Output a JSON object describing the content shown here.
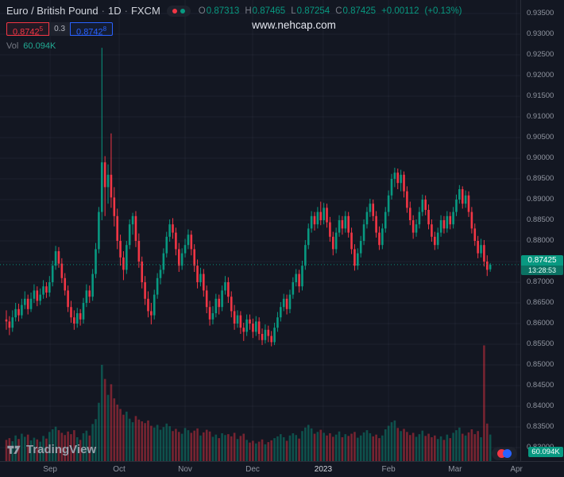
{
  "header": {
    "symbol": "Euro / British Pound",
    "separator": "·",
    "interval": "1D",
    "exchange": "FXCM",
    "ohlc": {
      "o_label": "O",
      "o_value": "0.87313",
      "h_label": "H",
      "h_value": "0.87465",
      "l_label": "L",
      "l_value": "0.87254",
      "c_label": "C",
      "c_value": "0.87425",
      "change": "+0.00112",
      "change_pct": "(+0.13%)"
    },
    "sell": {
      "main": "0.8742",
      "sup": "5"
    },
    "spread": "0.3",
    "buy": {
      "main": "0.8742",
      "sup": "8"
    },
    "vol_label": "Vol",
    "vol_value": "60.094K"
  },
  "watermark": "www.nehcap.com",
  "price_badge": {
    "price": "0.87425",
    "countdown": "13:28:53"
  },
  "volume_badge": "60.094K",
  "logo": {
    "text": "TradingView"
  },
  "price_scale": {
    "ticks": [
      "0.93500",
      "0.93000",
      "0.92500",
      "0.92000",
      "0.91500",
      "0.91000",
      "0.90500",
      "0.90000",
      "0.89500",
      "0.89000",
      "0.88500",
      "0.88000",
      "0.87500",
      "0.87000",
      "0.86500",
      "0.86000",
      "0.85500",
      "0.85000",
      "0.84500",
      "0.84000",
      "0.83500",
      "0.83000"
    ]
  },
  "time_axis": {
    "labels": [
      {
        "text": "Sep",
        "index": 14.2,
        "highlight": false
      },
      {
        "text": "Oct",
        "index": 36.6,
        "highlight": false
      },
      {
        "text": "Nov",
        "index": 58.0,
        "highlight": false
      },
      {
        "text": "Dec",
        "index": 79.9,
        "highlight": false
      },
      {
        "text": "2023",
        "index": 102.8,
        "highlight": true
      },
      {
        "text": "Feb",
        "index": 124.0,
        "highlight": false
      },
      {
        "text": "Mar",
        "index": 145.6,
        "highlight": false
      },
      {
        "text": "Apr",
        "index": 165.5,
        "highlight": false
      }
    ]
  },
  "colors": {
    "background": "#131722",
    "up": "#089981",
    "down": "#f23645",
    "vol_up": "rgba(8,153,129,0.45)",
    "vol_down": "rgba(242,54,69,0.45)",
    "grid": "rgba(149,158,178,0.08)",
    "buy_blue": "#2962ff",
    "sell_red": "#f23645",
    "badge_green": "#089981"
  },
  "chart_data": {
    "type": "candlestick",
    "title": "Euro / British Pound · 1D · FXCM",
    "symbol": "EUR/GBP",
    "interval": "1D",
    "exchange": "FXCM",
    "legend": [
      "price candles",
      "volume"
    ],
    "y_range": [
      0.83,
      0.935
    ],
    "y_tick_step": 0.005,
    "grid": true,
    "current_bar": {
      "open": 0.87313,
      "high": 0.87465,
      "low": 0.87254,
      "close": 0.87425,
      "change": 0.00112,
      "change_pct": 0.13,
      "volume": "60.094K",
      "countdown": "13:28:53"
    },
    "volume_scale_max_k": 270,
    "candle_fields": [
      "open",
      "high",
      "low",
      "close",
      "volume_k"
    ],
    "candles": [
      [
        0.861,
        0.8632,
        0.8585,
        0.8605,
        48
      ],
      [
        0.8605,
        0.8618,
        0.8572,
        0.859,
        52
      ],
      [
        0.859,
        0.8632,
        0.858,
        0.8615,
        45
      ],
      [
        0.8615,
        0.865,
        0.8605,
        0.8635,
        58
      ],
      [
        0.8635,
        0.8648,
        0.8605,
        0.862,
        50
      ],
      [
        0.862,
        0.866,
        0.8612,
        0.8645,
        62
      ],
      [
        0.8645,
        0.8678,
        0.8635,
        0.866,
        55
      ],
      [
        0.866,
        0.867,
        0.8622,
        0.8635,
        60
      ],
      [
        0.8635,
        0.8675,
        0.8628,
        0.866,
        47
      ],
      [
        0.866,
        0.8695,
        0.865,
        0.868,
        53
      ],
      [
        0.868,
        0.869,
        0.8642,
        0.8655,
        49
      ],
      [
        0.8655,
        0.8685,
        0.8645,
        0.867,
        44
      ],
      [
        0.867,
        0.8705,
        0.866,
        0.869,
        57
      ],
      [
        0.869,
        0.87,
        0.8662,
        0.8675,
        51
      ],
      [
        0.8675,
        0.8715,
        0.8665,
        0.87,
        66
      ],
      [
        0.87,
        0.8752,
        0.869,
        0.874,
        72
      ],
      [
        0.874,
        0.8788,
        0.873,
        0.8775,
        78
      ],
      [
        0.8775,
        0.8785,
        0.8735,
        0.8745,
        70
      ],
      [
        0.8745,
        0.8758,
        0.8698,
        0.871,
        64
      ],
      [
        0.871,
        0.8722,
        0.8668,
        0.868,
        59
      ],
      [
        0.868,
        0.8692,
        0.8628,
        0.864,
        67
      ],
      [
        0.864,
        0.8655,
        0.8602,
        0.8615,
        61
      ],
      [
        0.8615,
        0.8632,
        0.8585,
        0.86,
        70
      ],
      [
        0.86,
        0.8638,
        0.859,
        0.8625,
        54
      ],
      [
        0.8625,
        0.8635,
        0.8595,
        0.861,
        48
      ],
      [
        0.861,
        0.8662,
        0.86,
        0.865,
        63
      ],
      [
        0.865,
        0.8695,
        0.864,
        0.868,
        69
      ],
      [
        0.868,
        0.8692,
        0.865,
        0.8665,
        58
      ],
      [
        0.8665,
        0.8732,
        0.8655,
        0.872,
        84
      ],
      [
        0.872,
        0.8795,
        0.871,
        0.878,
        95
      ],
      [
        0.878,
        0.8882,
        0.877,
        0.887,
        132
      ],
      [
        0.887,
        0.9267,
        0.885,
        0.899,
        218
      ],
      [
        0.899,
        0.9005,
        0.886,
        0.893,
        186
      ],
      [
        0.893,
        0.8985,
        0.889,
        0.896,
        150
      ],
      [
        0.896,
        0.906,
        0.888,
        0.8905,
        174
      ],
      [
        0.8905,
        0.893,
        0.8835,
        0.886,
        142
      ],
      [
        0.886,
        0.8878,
        0.878,
        0.88,
        128
      ],
      [
        0.88,
        0.8815,
        0.874,
        0.876,
        118
      ],
      [
        0.876,
        0.8775,
        0.8705,
        0.873,
        105
      ],
      [
        0.873,
        0.88,
        0.872,
        0.879,
        112
      ],
      [
        0.879,
        0.8852,
        0.878,
        0.884,
        96
      ],
      [
        0.884,
        0.8868,
        0.8815,
        0.886,
        88
      ],
      [
        0.886,
        0.8872,
        0.8785,
        0.88,
        102
      ],
      [
        0.88,
        0.8818,
        0.8735,
        0.875,
        94
      ],
      [
        0.875,
        0.8762,
        0.8685,
        0.87,
        90
      ],
      [
        0.87,
        0.8715,
        0.8645,
        0.866,
        86
      ],
      [
        0.866,
        0.8678,
        0.8615,
        0.863,
        92
      ],
      [
        0.863,
        0.865,
        0.8598,
        0.862,
        80
      ],
      [
        0.862,
        0.8682,
        0.861,
        0.867,
        76
      ],
      [
        0.867,
        0.8722,
        0.866,
        0.871,
        82
      ],
      [
        0.871,
        0.8742,
        0.8695,
        0.873,
        71
      ],
      [
        0.873,
        0.8782,
        0.872,
        0.877,
        77
      ],
      [
        0.877,
        0.8822,
        0.876,
        0.881,
        85
      ],
      [
        0.881,
        0.8852,
        0.8798,
        0.884,
        79
      ],
      [
        0.884,
        0.8855,
        0.8805,
        0.882,
        68
      ],
      [
        0.882,
        0.8832,
        0.8765,
        0.878,
        73
      ],
      [
        0.878,
        0.8795,
        0.8725,
        0.874,
        66
      ],
      [
        0.874,
        0.8782,
        0.873,
        0.877,
        62
      ],
      [
        0.877,
        0.8805,
        0.876,
        0.879,
        75
      ],
      [
        0.879,
        0.8828,
        0.878,
        0.8815,
        70
      ],
      [
        0.8815,
        0.8825,
        0.8765,
        0.878,
        64
      ],
      [
        0.878,
        0.8792,
        0.8725,
        0.874,
        69
      ],
      [
        0.874,
        0.8755,
        0.8685,
        0.87,
        74
      ],
      [
        0.87,
        0.8735,
        0.869,
        0.872,
        58
      ],
      [
        0.872,
        0.8732,
        0.8665,
        0.868,
        65
      ],
      [
        0.868,
        0.8692,
        0.8625,
        0.864,
        71
      ],
      [
        0.864,
        0.8655,
        0.8595,
        0.861,
        67
      ],
      [
        0.861,
        0.8642,
        0.8598,
        0.8625,
        55
      ],
      [
        0.8625,
        0.8672,
        0.8615,
        0.866,
        60
      ],
      [
        0.866,
        0.867,
        0.8622,
        0.864,
        52
      ],
      [
        0.864,
        0.8692,
        0.863,
        0.868,
        63
      ],
      [
        0.868,
        0.8715,
        0.867,
        0.87,
        59
      ],
      [
        0.87,
        0.8712,
        0.865,
        0.8665,
        61
      ],
      [
        0.8665,
        0.8678,
        0.8615,
        0.863,
        56
      ],
      [
        0.863,
        0.8645,
        0.8585,
        0.86,
        64
      ],
      [
        0.86,
        0.8632,
        0.859,
        0.862,
        50
      ],
      [
        0.862,
        0.863,
        0.8575,
        0.859,
        57
      ],
      [
        0.859,
        0.8602,
        0.8558,
        0.858,
        62
      ],
      [
        0.858,
        0.8622,
        0.857,
        0.861,
        48
      ],
      [
        0.861,
        0.8622,
        0.8585,
        0.86,
        42
      ],
      [
        0.86,
        0.8612,
        0.8565,
        0.858,
        46
      ],
      [
        0.858,
        0.8618,
        0.857,
        0.8605,
        40
      ],
      [
        0.8605,
        0.8615,
        0.856,
        0.8575,
        44
      ],
      [
        0.8575,
        0.8588,
        0.8548,
        0.856,
        49
      ],
      [
        0.856,
        0.8598,
        0.8552,
        0.8585,
        38
      ],
      [
        0.8585,
        0.8595,
        0.8555,
        0.857,
        43
      ],
      [
        0.857,
        0.8582,
        0.8545,
        0.8555,
        47
      ],
      [
        0.8555,
        0.8602,
        0.8548,
        0.859,
        52
      ],
      [
        0.859,
        0.8628,
        0.858,
        0.8615,
        56
      ],
      [
        0.8615,
        0.8652,
        0.8605,
        0.864,
        61
      ],
      [
        0.864,
        0.8672,
        0.863,
        0.866,
        54
      ],
      [
        0.866,
        0.867,
        0.8622,
        0.8635,
        46
      ],
      [
        0.8635,
        0.8682,
        0.8625,
        0.867,
        58
      ],
      [
        0.867,
        0.8712,
        0.866,
        0.87,
        63
      ],
      [
        0.87,
        0.8732,
        0.869,
        0.872,
        59
      ],
      [
        0.872,
        0.873,
        0.8675,
        0.869,
        51
      ],
      [
        0.869,
        0.8752,
        0.868,
        0.874,
        68
      ],
      [
        0.874,
        0.8802,
        0.873,
        0.879,
        76
      ],
      [
        0.879,
        0.8842,
        0.878,
        0.883,
        82
      ],
      [
        0.883,
        0.8872,
        0.882,
        0.886,
        74
      ],
      [
        0.886,
        0.887,
        0.8825,
        0.884,
        62
      ],
      [
        0.884,
        0.8882,
        0.883,
        0.887,
        66
      ],
      [
        0.887,
        0.8895,
        0.8838,
        0.885,
        71
      ],
      [
        0.885,
        0.8892,
        0.884,
        0.888,
        64
      ],
      [
        0.888,
        0.889,
        0.8832,
        0.8845,
        58
      ],
      [
        0.8845,
        0.8858,
        0.8798,
        0.881,
        63
      ],
      [
        0.881,
        0.8822,
        0.8765,
        0.878,
        55
      ],
      [
        0.878,
        0.8832,
        0.877,
        0.882,
        60
      ],
      [
        0.882,
        0.8862,
        0.881,
        0.885,
        67
      ],
      [
        0.885,
        0.886,
        0.8815,
        0.883,
        54
      ],
      [
        0.883,
        0.8872,
        0.882,
        0.886,
        61
      ],
      [
        0.886,
        0.887,
        0.8808,
        0.882,
        57
      ],
      [
        0.882,
        0.8832,
        0.8768,
        0.878,
        62
      ],
      [
        0.878,
        0.8792,
        0.8728,
        0.874,
        66
      ],
      [
        0.874,
        0.8782,
        0.873,
        0.877,
        53
      ],
      [
        0.877,
        0.8812,
        0.876,
        0.88,
        58
      ],
      [
        0.88,
        0.8852,
        0.879,
        0.884,
        65
      ],
      [
        0.884,
        0.8882,
        0.883,
        0.887,
        70
      ],
      [
        0.887,
        0.8902,
        0.8858,
        0.889,
        63
      ],
      [
        0.889,
        0.89,
        0.8848,
        0.886,
        56
      ],
      [
        0.886,
        0.8872,
        0.8808,
        0.882,
        60
      ],
      [
        0.882,
        0.8835,
        0.8778,
        0.879,
        52
      ],
      [
        0.879,
        0.8842,
        0.878,
        0.883,
        58
      ],
      [
        0.883,
        0.8882,
        0.882,
        0.887,
        72
      ],
      [
        0.887,
        0.8922,
        0.886,
        0.891,
        80
      ],
      [
        0.891,
        0.8962,
        0.89,
        0.895,
        88
      ],
      [
        0.895,
        0.8977,
        0.893,
        0.8965,
        92
      ],
      [
        0.8965,
        0.8975,
        0.8925,
        0.894,
        75
      ],
      [
        0.894,
        0.8972,
        0.892,
        0.896,
        68
      ],
      [
        0.896,
        0.8968,
        0.8905,
        0.892,
        73
      ],
      [
        0.892,
        0.8932,
        0.8868,
        0.888,
        66
      ],
      [
        0.888,
        0.8895,
        0.8838,
        0.885,
        59
      ],
      [
        0.885,
        0.8862,
        0.8805,
        0.882,
        64
      ],
      [
        0.882,
        0.8852,
        0.881,
        0.884,
        55
      ],
      [
        0.884,
        0.8882,
        0.883,
        0.887,
        61
      ],
      [
        0.887,
        0.8912,
        0.886,
        0.89,
        69
      ],
      [
        0.89,
        0.891,
        0.8862,
        0.8875,
        57
      ],
      [
        0.8875,
        0.8888,
        0.8828,
        0.884,
        62
      ],
      [
        0.884,
        0.8852,
        0.8798,
        0.881,
        54
      ],
      [
        0.881,
        0.8822,
        0.8778,
        0.879,
        58
      ],
      [
        0.879,
        0.8832,
        0.878,
        0.882,
        50
      ],
      [
        0.882,
        0.8862,
        0.881,
        0.885,
        56
      ],
      [
        0.885,
        0.886,
        0.8818,
        0.883,
        48
      ],
      [
        0.883,
        0.8872,
        0.882,
        0.886,
        60
      ],
      [
        0.886,
        0.887,
        0.8828,
        0.884,
        52
      ],
      [
        0.884,
        0.8882,
        0.883,
        0.887,
        64
      ],
      [
        0.887,
        0.8912,
        0.886,
        0.89,
        70
      ],
      [
        0.89,
        0.8935,
        0.889,
        0.8925,
        76
      ],
      [
        0.8925,
        0.8932,
        0.8878,
        0.889,
        62
      ],
      [
        0.889,
        0.8922,
        0.888,
        0.891,
        58
      ],
      [
        0.891,
        0.892,
        0.8858,
        0.887,
        65
      ],
      [
        0.887,
        0.8882,
        0.8818,
        0.883,
        72
      ],
      [
        0.883,
        0.8842,
        0.8788,
        0.88,
        61
      ],
      [
        0.88,
        0.8812,
        0.8758,
        0.877,
        68
      ],
      [
        0.877,
        0.8805,
        0.876,
        0.879,
        54
      ],
      [
        0.879,
        0.8802,
        0.8738,
        0.875,
        262
      ],
      [
        0.875,
        0.8765,
        0.8715,
        0.873,
        85
      ],
      [
        0.87313,
        0.87465,
        0.87254,
        0.87425,
        60.094
      ]
    ]
  }
}
